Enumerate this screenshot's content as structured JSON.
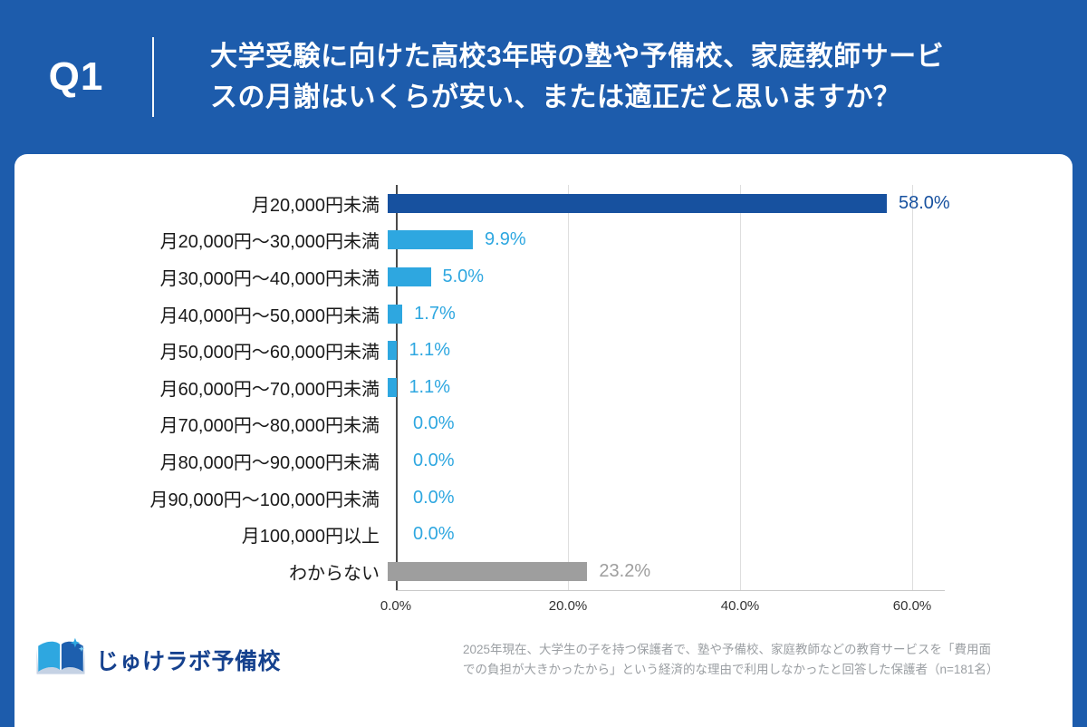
{
  "header": {
    "q_label": "Q1",
    "title": "大学受験に向けた高校3年時の塾や予備校、家庭教師サービ\nスの月謝はいくらが安い、または適正だと思いますか？"
  },
  "chart_data": {
    "type": "bar",
    "orientation": "horizontal",
    "title": "大学受験に向けた高校3年時の塾や予備校、家庭教師サービスの月謝はいくらが安い、または適正だと思いますか？",
    "categories": [
      "月20,000円未満",
      "月20,000円〜30,000円未満",
      "月30,000円〜40,000円未満",
      "月40,000円〜50,000円未満",
      "月50,000円〜60,000円未満",
      "月60,000円〜70,000円未満",
      "月70,000円〜80,000円未満",
      "月80,000円〜90,000円未満",
      "月90,000円〜100,000円未満",
      "月100,000円以上",
      "わからない"
    ],
    "values": [
      58.0,
      9.9,
      5.0,
      1.7,
      1.1,
      1.1,
      0.0,
      0.0,
      0.0,
      0.0,
      23.2
    ],
    "value_labels": [
      "58.0%",
      "9.9%",
      "5.0%",
      "1.7%",
      "1.1%",
      "1.1%",
      "0.0%",
      "0.0%",
      "0.0%",
      "0.0%",
      "23.2%"
    ],
    "bar_color_keys": [
      "primary",
      "secondary",
      "secondary",
      "secondary",
      "secondary",
      "secondary",
      "secondary",
      "secondary",
      "secondary",
      "secondary",
      "muted"
    ],
    "x_ticks": [
      "0.0%",
      "20.0%",
      "40.0%",
      "60.0%"
    ],
    "x_tick_values": [
      0,
      20,
      40,
      60
    ],
    "xlim": [
      0,
      64
    ],
    "grid": true,
    "legend": false,
    "colors": {
      "primary": "#17519F",
      "secondary": "#2EA7E0",
      "muted": "#9E9E9E",
      "header_bg": "#1D5CAC"
    }
  },
  "footer": {
    "logo_text": "じゅけラボ予備校",
    "note": "2025年現在、大学生の子を持つ保護者で、塾や予備校、家庭教師などの教育サービスを「費用面\nでの負担が大きかったから」という経済的な理由で利用しなかったと回答した保護者（n=181名）"
  }
}
